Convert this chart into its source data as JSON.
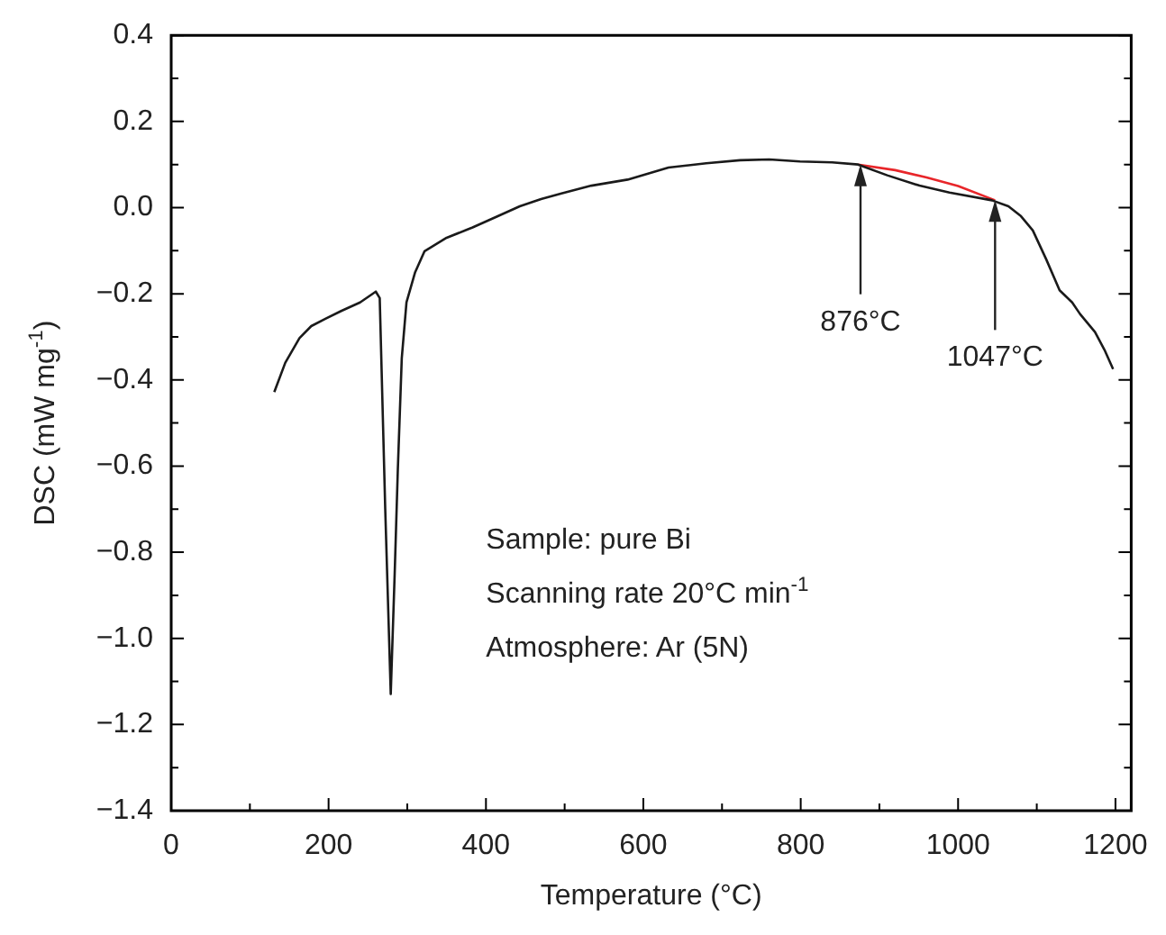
{
  "chart_data": {
    "type": "line",
    "xlabel": "Temperature (°C)",
    "ylabel": "DSC (mW mg$^{-1}$)",
    "xlim": [
      0,
      1220
    ],
    "ylim": [
      -1.4,
      0.4
    ],
    "xticks": [
      0,
      {
        "value": 100,
        "label": null
      },
      200,
      {
        "value": 300,
        "label": null
      },
      400,
      {
        "value": 500,
        "label": null
      },
      600,
      {
        "value": 700,
        "label": null
      },
      800,
      {
        "value": 900,
        "label": null
      },
      1000,
      {
        "value": 1100,
        "label": null
      },
      1200
    ],
    "yticks": [
      {
        "value": 0.4,
        "label": "0.4"
      },
      {
        "value": 0.3,
        "label": null
      },
      {
        "value": 0.2,
        "label": "0.2"
      },
      {
        "value": 0.1,
        "label": null
      },
      {
        "value": 0.0,
        "label": "0.0"
      },
      {
        "value": -0.1,
        "label": null
      },
      {
        "value": -0.2,
        "label": "−0.2"
      },
      {
        "value": -0.3,
        "label": null
      },
      {
        "value": -0.4,
        "label": "−0.4"
      },
      {
        "value": -0.5,
        "label": null
      },
      {
        "value": -0.6,
        "label": "−0.6"
      },
      {
        "value": -0.7,
        "label": null
      },
      {
        "value": -0.8,
        "label": "−0.8"
      },
      {
        "value": -0.9,
        "label": null
      },
      {
        "value": -1.0,
        "label": "−1.0"
      },
      {
        "value": -1.1,
        "label": null
      },
      {
        "value": -1.2,
        "label": "−1.2"
      },
      {
        "value": -1.3,
        "label": null
      },
      {
        "value": -1.4,
        "label": "−1.4"
      }
    ],
    "series": [
      {
        "color": "#1a1a1a",
        "x": [
          131,
          145,
          163,
          178,
          196,
          216,
          240,
          260,
          265,
          272,
          279,
          284,
          288,
          293,
          299,
          310,
          322,
          350,
          383,
          415,
          443,
          470,
          496,
          534,
          580,
          632,
          680,
          723,
          760,
          799,
          840,
          873,
          910,
          951,
          989,
          1043,
          1064,
          1080,
          1095,
          1112,
          1129,
          1145,
          1155,
          1174,
          1186,
          1197
        ],
        "values": [
          -0.428,
          -0.36,
          -0.303,
          -0.275,
          -0.258,
          -0.24,
          -0.22,
          -0.195,
          -0.21,
          -0.7,
          -1.129,
          -0.85,
          -0.608,
          -0.35,
          -0.22,
          -0.15,
          -0.101,
          -0.07,
          -0.046,
          -0.02,
          0.003,
          0.02,
          0.033,
          0.051,
          0.065,
          0.093,
          0.103,
          0.11,
          0.112,
          0.107,
          0.105,
          0.1,
          0.075,
          0.051,
          0.035,
          0.017,
          0.003,
          -0.02,
          -0.053,
          -0.12,
          -0.192,
          -0.22,
          -0.247,
          -0.289,
          -0.33,
          -0.375
        ]
      },
      {
        "color": "#e8262a",
        "x": [
          873,
          920,
          960,
          1000,
          1047
        ],
        "values": [
          0.1,
          0.087,
          0.07,
          0.05,
          0.017
        ]
      }
    ],
    "annotations": [
      {
        "text": "876°C",
        "x": 876,
        "y": 0.1
      },
      {
        "text": "1047°C",
        "x": 1047,
        "y": 0.017
      },
      "Sample: pure Bi",
      "Scanning rate 20°C min$^{-1}$",
      "Atmosphere: Ar (5N)"
    ],
    "grid": false,
    "legend": false,
    "marker": "none",
    "line_style": "solid"
  }
}
